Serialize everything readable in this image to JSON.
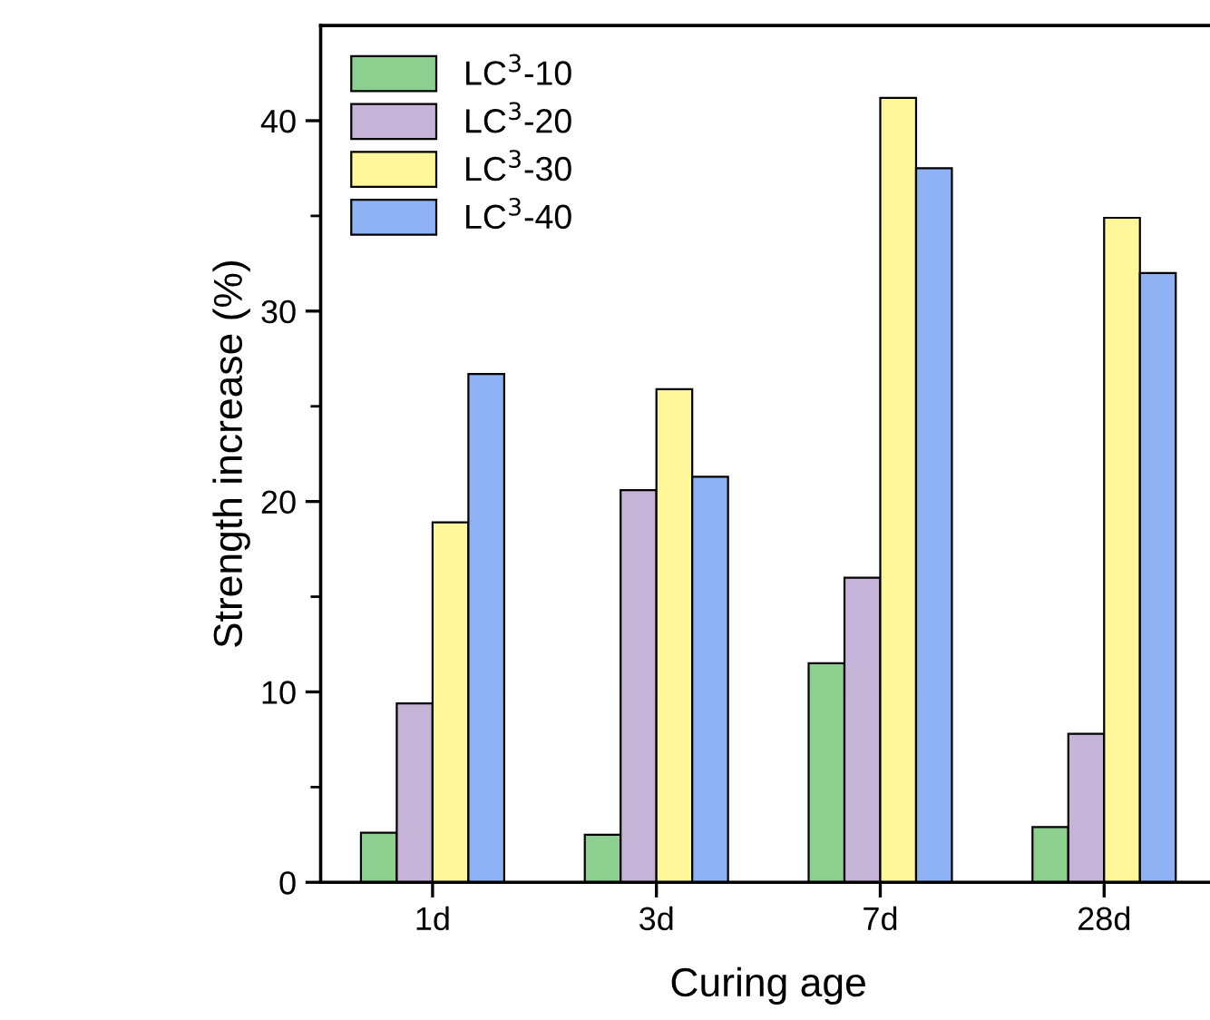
{
  "chart_data": {
    "type": "bar",
    "xlabel": "Curing age",
    "ylabel": "Strength increase (%)",
    "categories": [
      "1d",
      "3d",
      "7d",
      "28d"
    ],
    "series": [
      {
        "name": "LC$^{3}$-10",
        "color": "#8ccf8f",
        "values": [
          2.6,
          2.5,
          11.5,
          2.9
        ]
      },
      {
        "name": "LC$^{3}$-20",
        "color": "#c5b4d8",
        "values": [
          9.4,
          20.6,
          16.0,
          7.8
        ]
      },
      {
        "name": "LC$^{3}$-30",
        "color": "#fff799",
        "values": [
          18.9,
          25.9,
          41.2,
          34.9
        ]
      },
      {
        "name": "LC$^{3}$-40",
        "color": "#8fb2f5",
        "values": [
          26.7,
          21.3,
          37.5,
          32.0
        ]
      }
    ],
    "ylim": [
      0,
      45
    ],
    "yticks": [
      0,
      10,
      20,
      30,
      40
    ],
    "grid": false,
    "legend": "top left"
  }
}
